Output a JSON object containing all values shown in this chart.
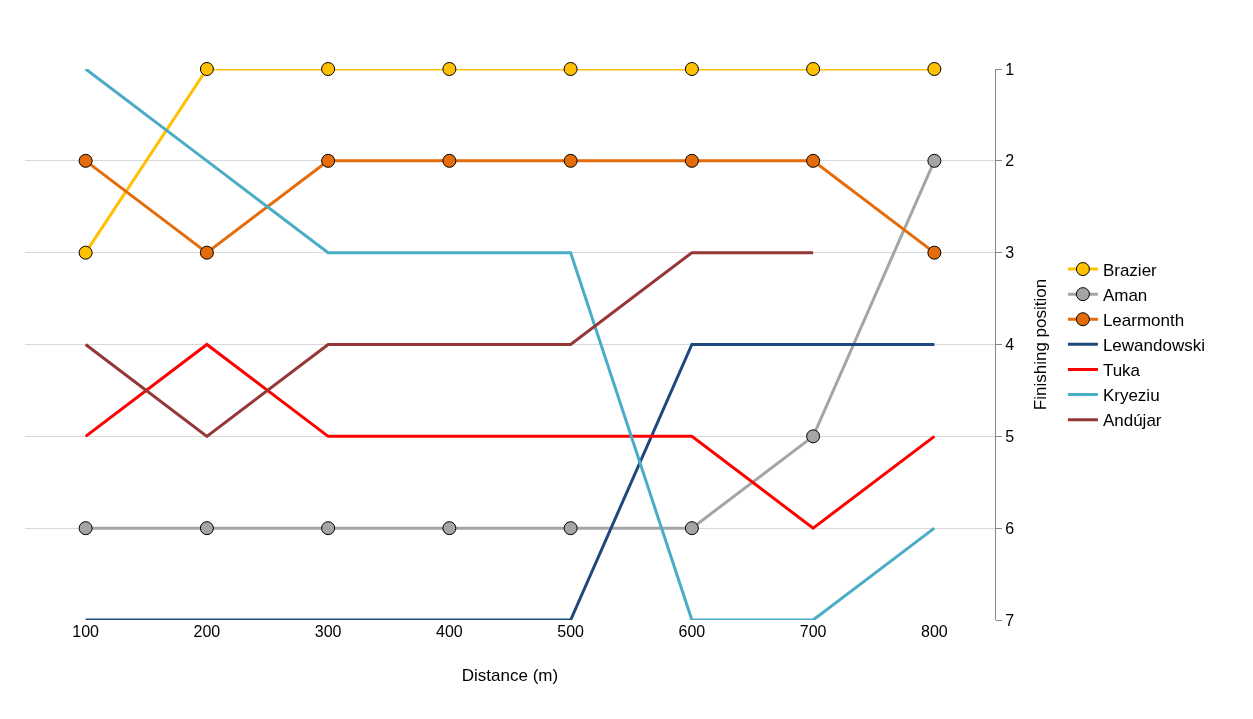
{
  "chart_data": {
    "type": "line",
    "xlabel": "Distance (m)",
    "ylabel": "Finishing position",
    "categories": [
      "100",
      "200",
      "300",
      "400",
      "500",
      "600",
      "700",
      "800"
    ],
    "ylim": [
      7,
      1
    ],
    "yticks": [
      1,
      2,
      3,
      4,
      5,
      6,
      7
    ],
    "grid": "y",
    "legend": "right",
    "line_style": "solid",
    "series": [
      {
        "name": "Brazier",
        "color": "#ffc000",
        "marker": "circle",
        "values": [
          3,
          1,
          1,
          1,
          1,
          1,
          1,
          1
        ]
      },
      {
        "name": "Aman",
        "color": "#a5a5a5",
        "marker": "circle",
        "values": [
          6,
          6,
          6,
          6,
          6,
          6,
          5,
          2
        ]
      },
      {
        "name": "Learmonth",
        "color": "#e46c0a",
        "marker": "circle",
        "values": [
          2,
          3,
          2,
          2,
          2,
          2,
          2,
          3
        ]
      },
      {
        "name": "Lewandowski",
        "color": "#1f497d",
        "marker": "none",
        "values": [
          7,
          7,
          7,
          7,
          7,
          4,
          4,
          4
        ]
      },
      {
        "name": "Tuka",
        "color": "#ff0000",
        "marker": "none",
        "values": [
          5,
          4,
          5,
          5,
          5,
          5,
          6,
          5
        ]
      },
      {
        "name": "Kryeziu",
        "color": "#4bacc6",
        "marker": "none",
        "values": [
          1,
          2,
          3,
          3,
          3,
          7,
          7,
          6
        ]
      },
      {
        "name": "Andújar",
        "color": "#953735",
        "marker": "none",
        "values": [
          4,
          5,
          4,
          4,
          4,
          3,
          3,
          null
        ]
      }
    ]
  }
}
